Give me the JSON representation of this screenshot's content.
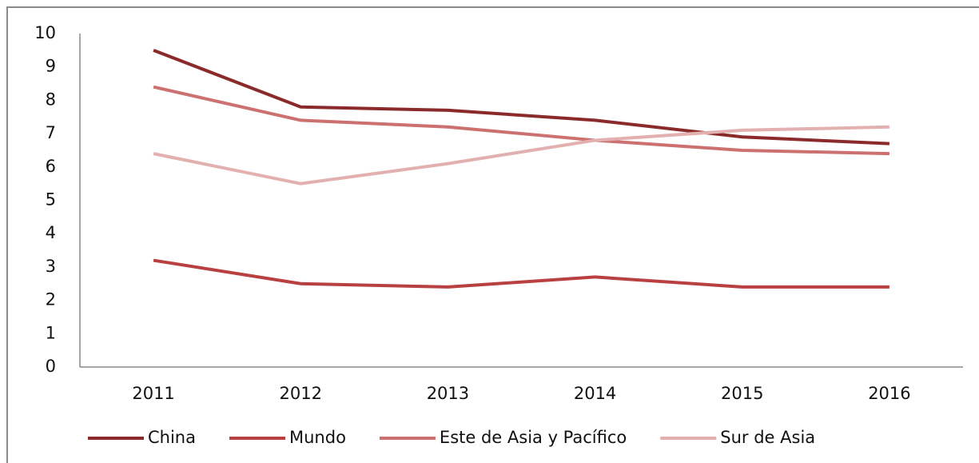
{
  "chart_data": {
    "type": "line",
    "categories": [
      "2011",
      "2012",
      "2013",
      "2014",
      "2015",
      "2016"
    ],
    "series": [
      {
        "name": "China",
        "color": "#8b2a2a",
        "values": [
          9.5,
          7.8,
          7.7,
          7.4,
          6.9,
          6.7
        ]
      },
      {
        "name": "Mundo",
        "color": "#b84040",
        "values": [
          3.2,
          2.5,
          2.4,
          2.7,
          2.4,
          2.4
        ]
      },
      {
        "name": "Este de Asia y Pacífico",
        "color": "#cc7070",
        "values": [
          8.4,
          7.4,
          7.2,
          6.8,
          6.5,
          6.4
        ]
      },
      {
        "name": "Sur de Asia",
        "color": "#e3b0b0",
        "values": [
          6.4,
          5.5,
          6.1,
          6.8,
          7.1,
          7.2
        ]
      }
    ],
    "ylim": [
      0,
      10
    ],
    "yticks": [
      0,
      1,
      2,
      3,
      4,
      5,
      6,
      7,
      8,
      9,
      10
    ],
    "grid": false,
    "legend": "bottom"
  }
}
